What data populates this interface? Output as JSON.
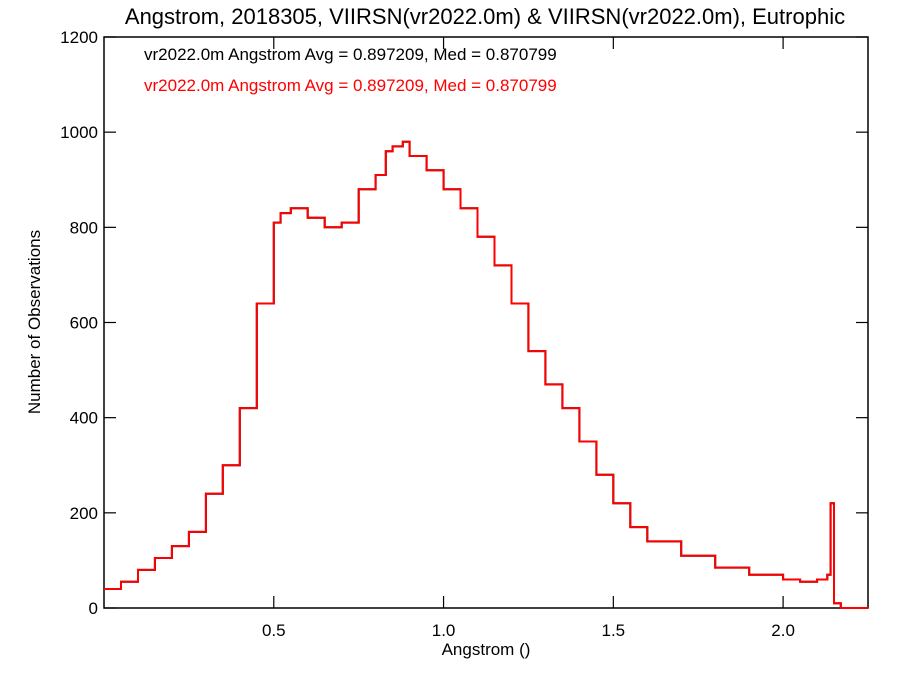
{
  "chart_data": {
    "type": "line",
    "step": true,
    "title": "Angstrom, 2018305, VIIRSN(vr2022.0m) & VIIRSN(vr2022.0m), Eutrophic",
    "xlabel": "Angstrom ()",
    "ylabel": "Number of Observations",
    "xlim": [
      0.0,
      2.25
    ],
    "ylim": [
      0,
      1200
    ],
    "xticks": [
      0.5,
      1.0,
      1.5,
      2.0
    ],
    "xtick_labels": [
      "0.5",
      "1.0",
      "1.5",
      "2.0"
    ],
    "yticks": [
      0,
      200,
      400,
      600,
      800,
      1000,
      1200
    ],
    "ytick_labels": [
      "0",
      "200",
      "400",
      "600",
      "800",
      "1000",
      "1200"
    ],
    "grid": false,
    "legend_position": "top-left",
    "series": [
      {
        "name": "vr2022.0m",
        "label": "vr2022.0m Angstrom Avg = 0.897209, Med = 0.870799",
        "color": "#000000",
        "x": [
          0.0,
          0.05,
          0.1,
          0.15,
          0.2,
          0.25,
          0.3,
          0.35,
          0.4,
          0.45,
          0.5,
          0.52,
          0.55,
          0.6,
          0.65,
          0.7,
          0.75,
          0.8,
          0.83,
          0.85,
          0.88,
          0.9,
          0.95,
          1.0,
          1.05,
          1.1,
          1.15,
          1.2,
          1.25,
          1.3,
          1.35,
          1.4,
          1.45,
          1.5,
          1.55,
          1.6,
          1.7,
          1.8,
          1.9,
          2.0,
          2.05,
          2.1,
          2.13,
          2.14,
          2.15,
          2.17,
          2.25
        ],
        "y": [
          40,
          55,
          80,
          105,
          130,
          160,
          240,
          300,
          420,
          640,
          810,
          830,
          840,
          820,
          800,
          810,
          880,
          910,
          960,
          970,
          980,
          950,
          920,
          880,
          840,
          780,
          720,
          640,
          540,
          470,
          420,
          350,
          280,
          220,
          170,
          140,
          110,
          85,
          70,
          60,
          55,
          60,
          70,
          220,
          10,
          0,
          0
        ]
      },
      {
        "name": "vr2022.0m",
        "label": "vr2022.0m Angstrom Avg = 0.897209, Med = 0.870799",
        "color": "#ff0000",
        "x": [
          0.0,
          0.05,
          0.1,
          0.15,
          0.2,
          0.25,
          0.3,
          0.35,
          0.4,
          0.45,
          0.5,
          0.52,
          0.55,
          0.6,
          0.65,
          0.7,
          0.75,
          0.8,
          0.83,
          0.85,
          0.88,
          0.9,
          0.95,
          1.0,
          1.05,
          1.1,
          1.15,
          1.2,
          1.25,
          1.3,
          1.35,
          1.4,
          1.45,
          1.5,
          1.55,
          1.6,
          1.7,
          1.8,
          1.9,
          2.0,
          2.05,
          2.1,
          2.13,
          2.14,
          2.15,
          2.17,
          2.25
        ],
        "y": [
          40,
          55,
          80,
          105,
          130,
          160,
          240,
          300,
          420,
          640,
          810,
          830,
          840,
          820,
          800,
          810,
          880,
          910,
          960,
          970,
          980,
          950,
          920,
          880,
          840,
          780,
          720,
          640,
          540,
          470,
          420,
          350,
          280,
          220,
          170,
          140,
          110,
          85,
          70,
          60,
          55,
          60,
          70,
          220,
          10,
          0,
          0
        ]
      }
    ]
  }
}
